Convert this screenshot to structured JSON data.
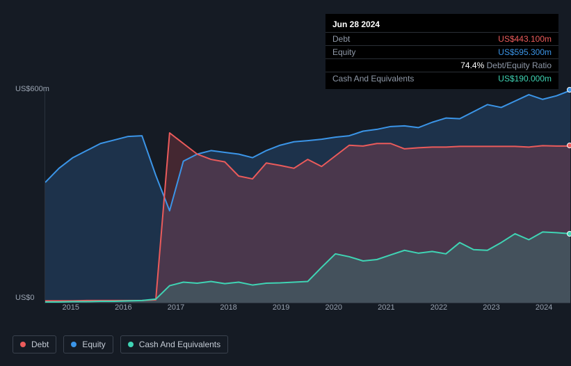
{
  "tooltip": {
    "date": "Jun 28 2024",
    "rows": [
      {
        "label": "Debt",
        "value": "US$443.100m",
        "color": "#eb5b5b"
      },
      {
        "label": "Equity",
        "value": "US$595.300m",
        "color": "#3b95e8"
      },
      {
        "label": "",
        "value": "74.4%",
        "suffix": "Debt/Equity Ratio",
        "color": "#ffffff"
      },
      {
        "label": "Cash And Equivalents",
        "value": "US$190.000m",
        "color": "#3fd4b4"
      }
    ]
  },
  "chart": {
    "type": "area-line",
    "ylim": [
      0,
      600
    ],
    "y_ticks": [
      {
        "v": 0,
        "label": "US$0"
      },
      {
        "v": 600,
        "label": "US$600m"
      }
    ],
    "x_labels": [
      "2015",
      "2016",
      "2017",
      "2018",
      "2019",
      "2020",
      "2021",
      "2022",
      "2023",
      "2024"
    ],
    "label_fontsize": 11,
    "label_color": "#9aa4b2",
    "background_color": "#151b24",
    "grid_color": "#2a323d",
    "series": {
      "equity": {
        "color": "#3b95e8",
        "fill": "rgba(45,95,150,0.35)",
        "line_width": 2,
        "values": [
          340,
          380,
          410,
          430,
          450,
          460,
          470,
          472,
          360,
          260,
          400,
          420,
          430,
          425,
          420,
          410,
          430,
          445,
          455,
          458,
          462,
          468,
          472,
          485,
          490,
          498,
          500,
          495,
          510,
          522,
          520,
          540,
          560,
          552,
          570,
          588,
          575,
          585,
          600
        ]
      },
      "debt": {
        "color": "#eb5b5b",
        "fill": "rgba(180,70,80,0.30)",
        "line_width": 2,
        "values": [
          5,
          5,
          5,
          6,
          6,
          6,
          6,
          6,
          8,
          480,
          450,
          420,
          405,
          398,
          358,
          350,
          395,
          388,
          380,
          405,
          385,
          415,
          445,
          443,
          450,
          450,
          435,
          438,
          440,
          440,
          442,
          442,
          442,
          442,
          442,
          440,
          444,
          443,
          443
        ]
      },
      "cash": {
        "color": "#3fd4b4",
        "fill": "rgba(50,160,140,0.25)",
        "line_width": 2,
        "values": [
          2,
          2,
          3,
          3,
          4,
          4,
          5,
          6,
          10,
          48,
          58,
          55,
          60,
          54,
          58,
          50,
          55,
          56,
          58,
          60,
          100,
          138,
          130,
          118,
          122,
          135,
          148,
          140,
          145,
          138,
          170,
          150,
          148,
          170,
          195,
          178,
          200,
          198,
          195
        ]
      }
    },
    "end_markers": [
      {
        "series": "equity",
        "color": "#3b95e8"
      },
      {
        "series": "debt",
        "color": "#eb5b5b"
      },
      {
        "series": "cash",
        "color": "#3fd4b4"
      }
    ]
  },
  "legend": [
    {
      "label": "Debt",
      "color": "#eb5b5b"
    },
    {
      "label": "Equity",
      "color": "#3b95e8"
    },
    {
      "label": "Cash And Equivalents",
      "color": "#3fd4b4"
    }
  ]
}
